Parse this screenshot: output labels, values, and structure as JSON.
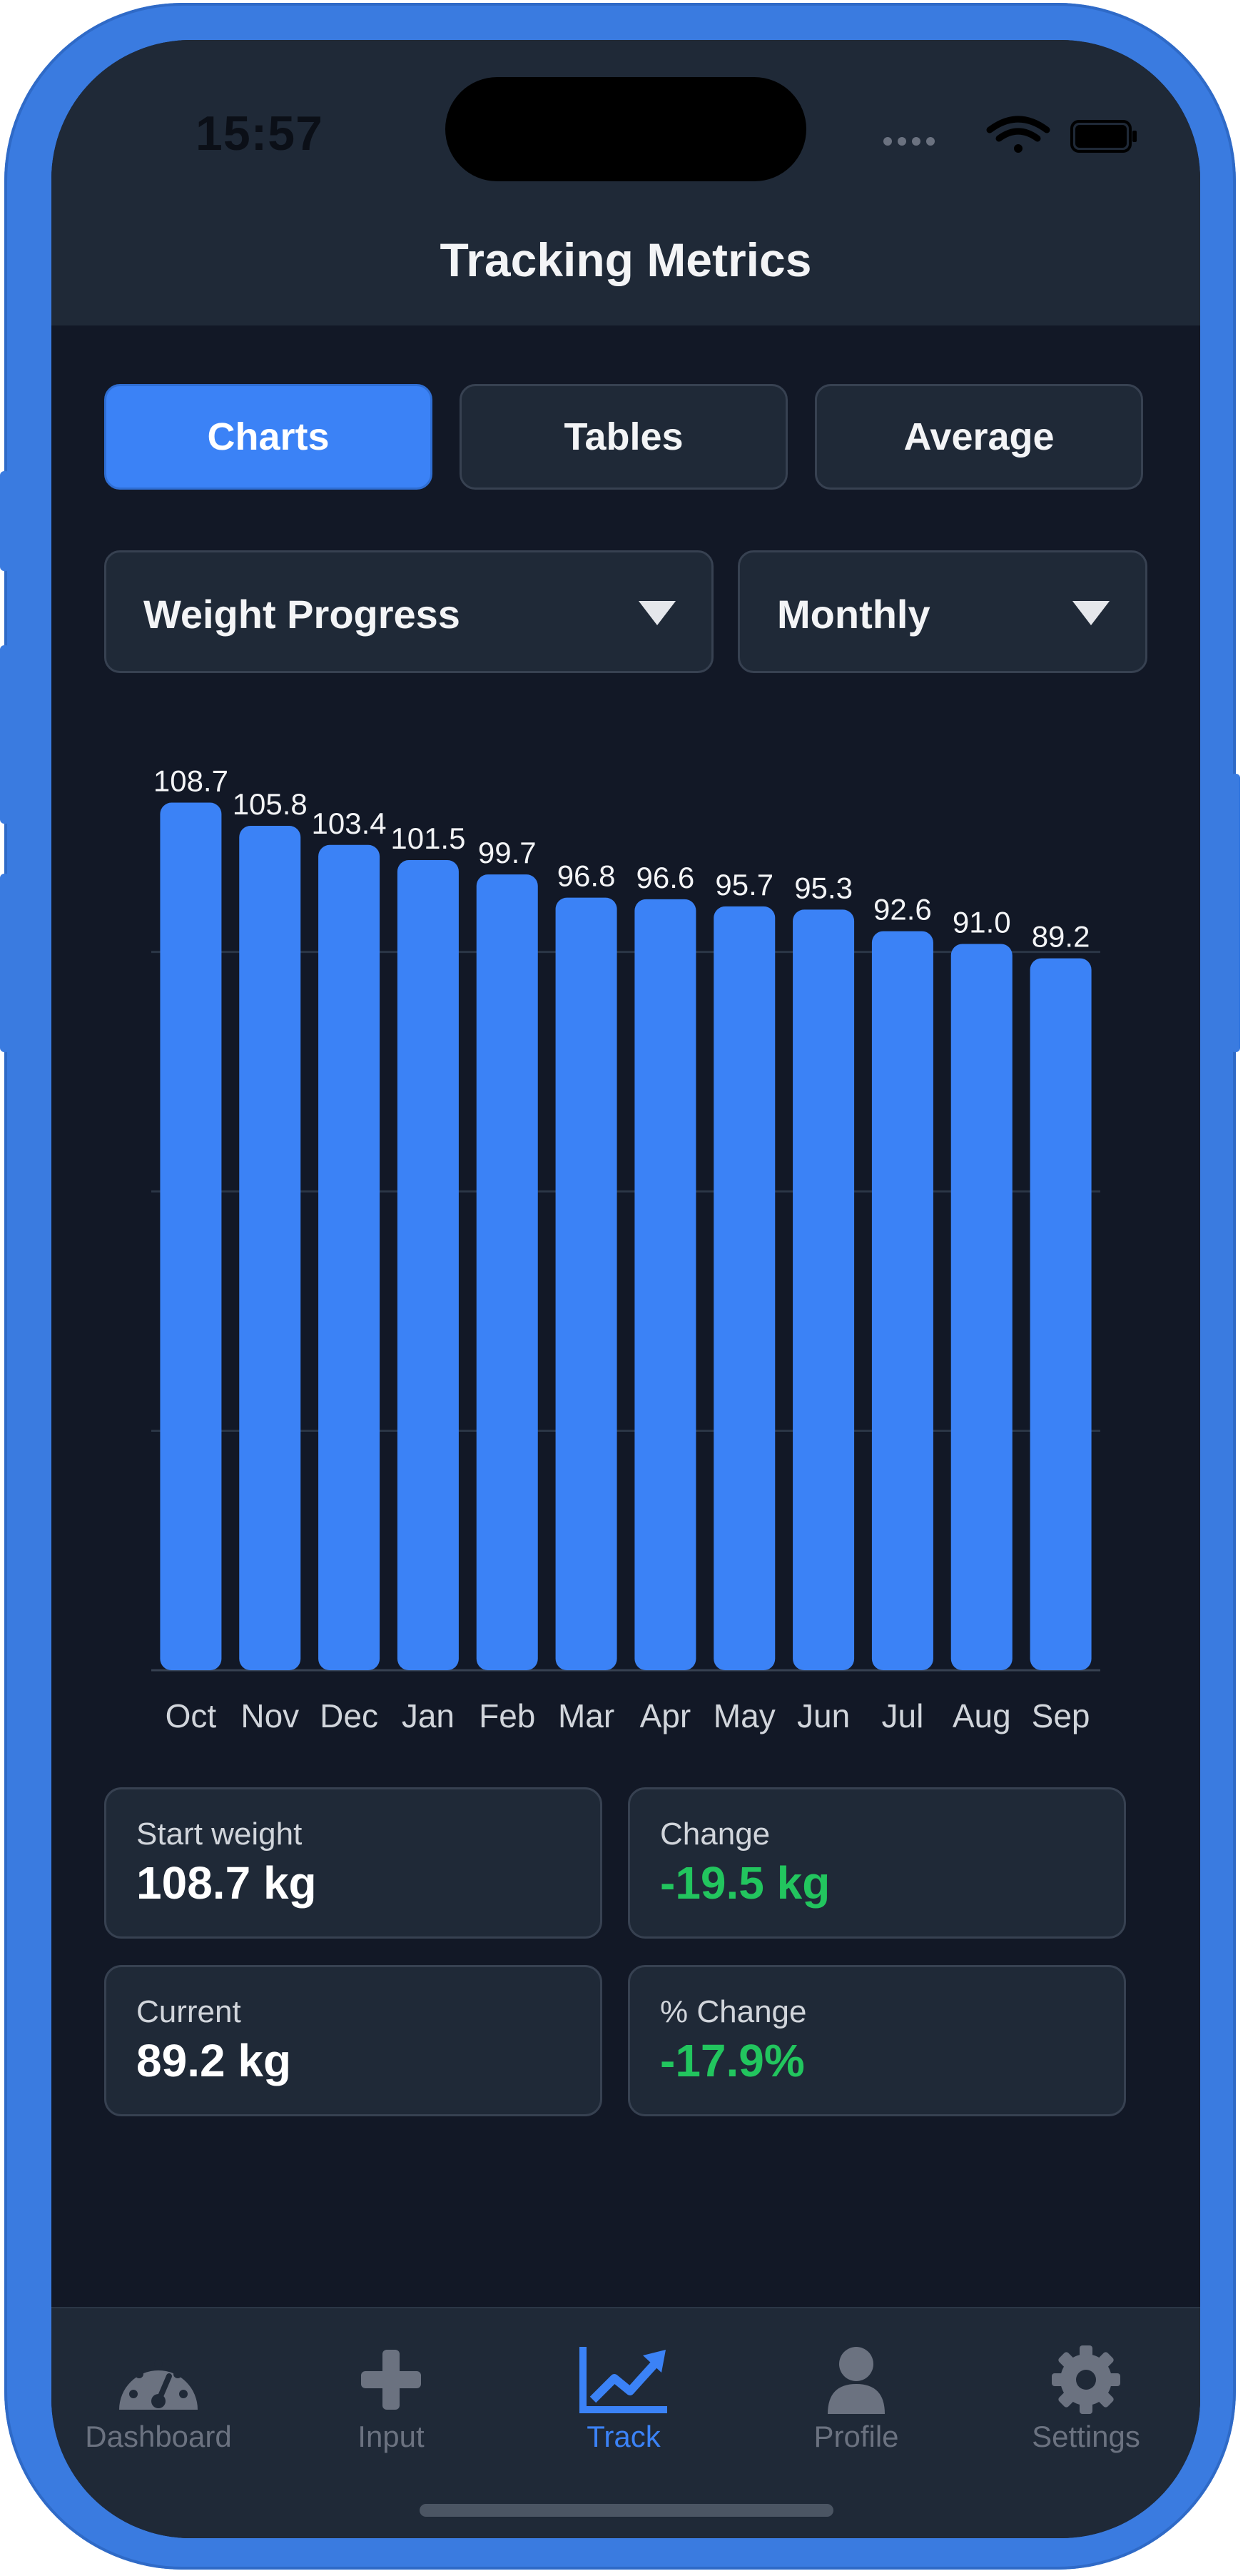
{
  "status": {
    "time": "15:57"
  },
  "header": {
    "title": "Tracking Metrics"
  },
  "segments": [
    {
      "label": "Charts",
      "active": true
    },
    {
      "label": "Tables",
      "active": false
    },
    {
      "label": "Average",
      "active": false
    }
  ],
  "filters": {
    "metric": "Weight Progress",
    "period": "Monthly"
  },
  "chart_data": {
    "type": "bar",
    "categories": [
      "Oct",
      "Nov",
      "Dec",
      "Jan",
      "Feb",
      "Mar",
      "Apr",
      "May",
      "Jun",
      "Jul",
      "Aug",
      "Sep"
    ],
    "values": [
      108.7,
      105.8,
      103.4,
      101.5,
      99.7,
      96.8,
      96.6,
      95.7,
      95.3,
      92.6,
      91.0,
      89.2
    ],
    "value_labels": [
      "108.7",
      "105.8",
      "103.4",
      "101.5",
      "99.7",
      "96.8",
      "96.6",
      "95.7",
      "95.3",
      "92.6",
      "91.0",
      "89.2"
    ],
    "ylim": [
      0,
      110
    ],
    "grid": true,
    "bar_color": "#3b82f6"
  },
  "stats": {
    "start": {
      "label": "Start weight",
      "value": "108.7 kg"
    },
    "change": {
      "label": "Change",
      "value": "-19.5 kg"
    },
    "current": {
      "label": "Current",
      "value": "89.2 kg"
    },
    "pct_change": {
      "label": "% Change",
      "value": "-17.9%"
    }
  },
  "tabs": [
    {
      "label": "Dashboard",
      "icon": "gauge-icon"
    },
    {
      "label": "Input",
      "icon": "plus-icon"
    },
    {
      "label": "Track",
      "icon": "chart-line-icon",
      "active": true
    },
    {
      "label": "Profile",
      "icon": "user-icon"
    },
    {
      "label": "Settings",
      "icon": "gear-icon"
    }
  ],
  "colors": {
    "accent": "#3b82f6",
    "positive": "#22c55e",
    "background": "#121826",
    "surface": "#1f2937"
  }
}
